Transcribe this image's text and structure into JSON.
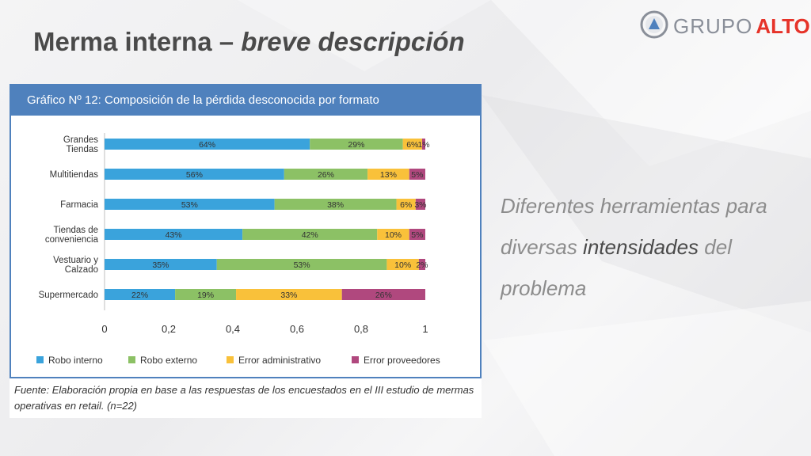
{
  "slide": {
    "title_main": "Merma interna – ",
    "title_italic": "breve descripción"
  },
  "logo": {
    "word1": "GRUPO",
    "word2": "ALTO",
    "icon": "triangle-circle-logo-icon"
  },
  "side_text": {
    "line1": "Diferentes herramientas para",
    "pre": "diversas ",
    "highlight": "intensidades",
    "post": " del",
    "line3": "problema"
  },
  "source_note": "Fuente: Elaboración propia en base a las respuestas de los encuestados en el III estudio de mermas operativas en retail. (n=22)",
  "colors": {
    "header": "#4f81bd",
    "robo_interno": "#3aa3dc",
    "robo_externo": "#8cc165",
    "error_administrativo": "#f9c13a",
    "error_proveedores": "#b0487e"
  },
  "chart_data": {
    "type": "bar",
    "orientation": "horizontal",
    "stacked": true,
    "title": "Gráfico Nº 12: Composición de la pérdida desconocida por formato",
    "categories": [
      [
        "Grandes",
        "Tiendas"
      ],
      [
        "Multitiendas"
      ],
      [
        "Farmacia"
      ],
      [
        "Tiendas de",
        "conveniencia"
      ],
      [
        "Vestuario y",
        "Calzado"
      ],
      [
        "Supermercado"
      ]
    ],
    "series": [
      {
        "name": "Robo interno",
        "color": "#3aa3dc",
        "values": [
          0.64,
          0.56,
          0.53,
          0.43,
          0.35,
          0.22
        ],
        "labels": [
          "64%",
          "56%",
          "53%",
          "43%",
          "35%",
          "22%"
        ]
      },
      {
        "name": "Robo externo",
        "color": "#8cc165",
        "values": [
          0.29,
          0.26,
          0.38,
          0.42,
          0.53,
          0.19
        ],
        "labels": [
          "29%",
          "26%",
          "38%",
          "42%",
          "53%",
          "19%"
        ]
      },
      {
        "name": "Error administrativo",
        "color": "#f9c13a",
        "values": [
          0.06,
          0.13,
          0.06,
          0.1,
          0.1,
          0.33
        ],
        "labels": [
          "6%",
          "13%",
          "6%",
          "10%",
          "10%",
          "33%"
        ]
      },
      {
        "name": "Error proveedores",
        "color": "#b0487e",
        "values": [
          0.01,
          0.05,
          0.03,
          0.05,
          0.02,
          0.26
        ],
        "labels": [
          "1%",
          "5%",
          "3%",
          "5%",
          "2%",
          "26%"
        ]
      }
    ],
    "xlim": [
      0,
      1
    ],
    "xticks": [
      "0",
      "0,2",
      "0,4",
      "0,6",
      "0,8",
      "1"
    ],
    "grid": false,
    "legend_position": "bottom"
  }
}
